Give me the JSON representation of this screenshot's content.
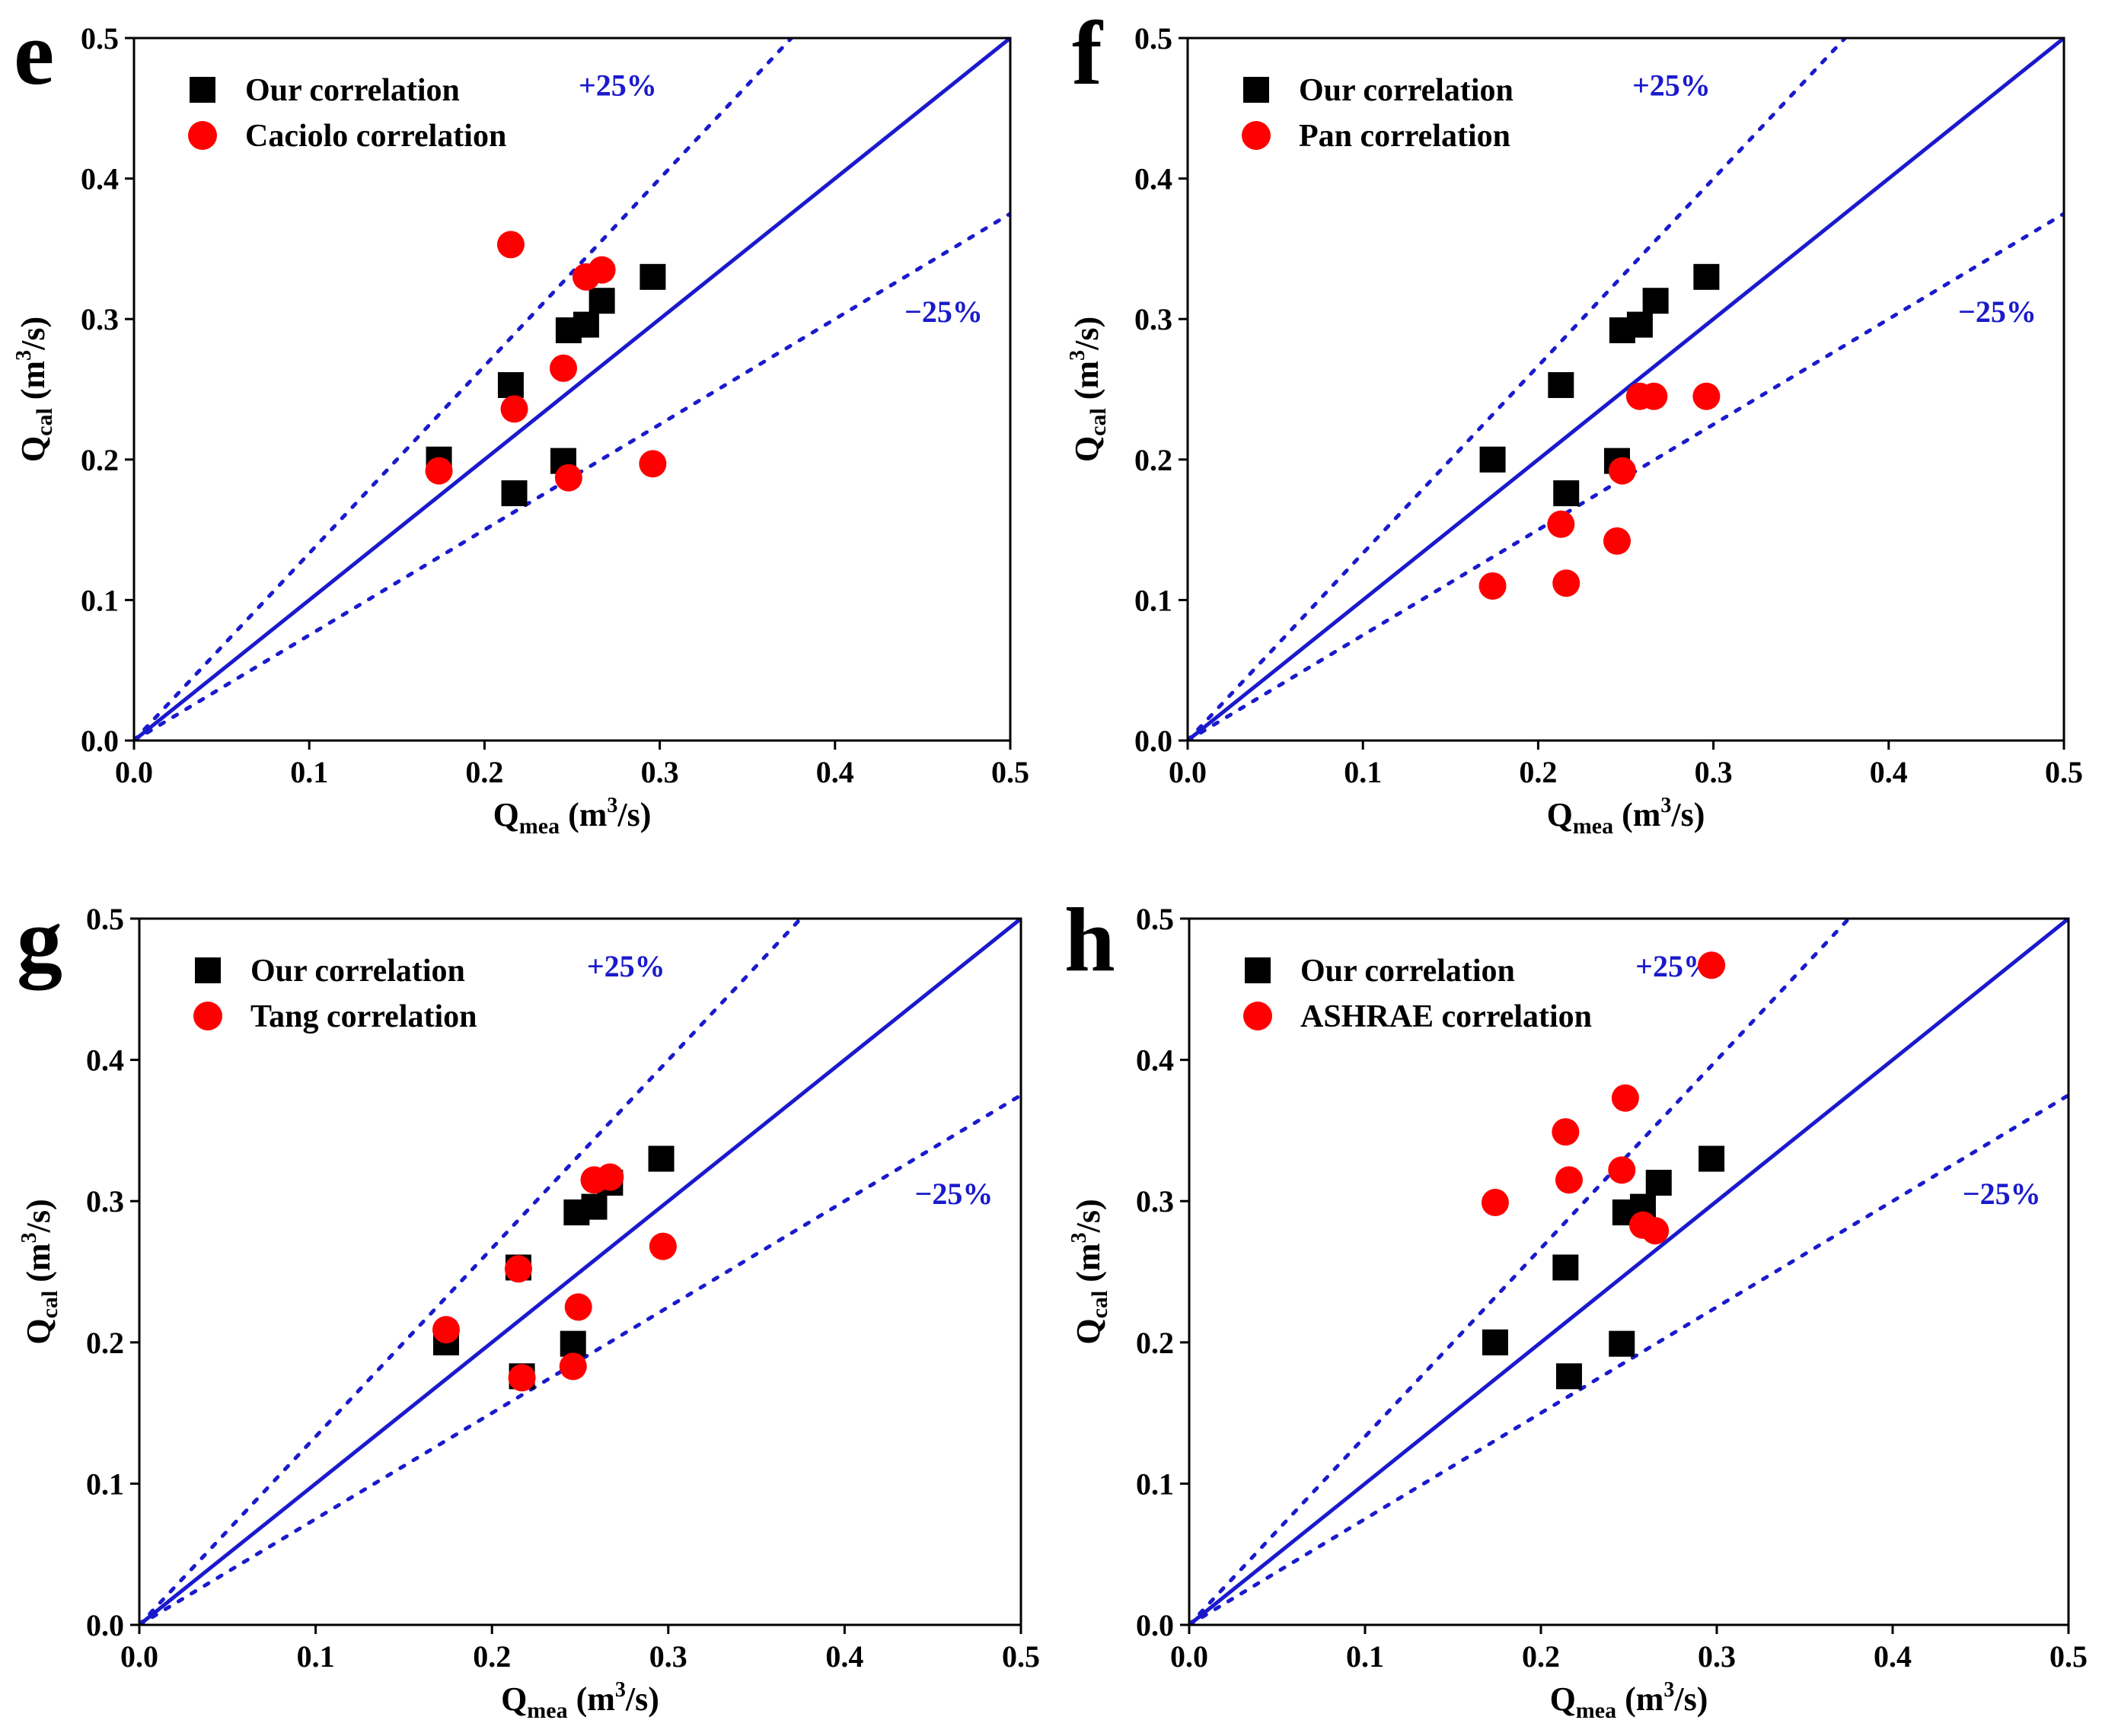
{
  "colors": {
    "ours": "#000000",
    "other": "#ff0000",
    "line": "#1a1acc",
    "axis": "#000000"
  },
  "chart_data": [
    {
      "type": "scatter",
      "panel_label": "e",
      "xlabel_main": "Q",
      "xlabel_sub": "mea",
      "xlabel_unit_pre": " (m",
      "xlabel_unit_sup": "3",
      "xlabel_unit_post": "/s)",
      "ylabel_main": "Q",
      "ylabel_sub": "cal",
      "ylabel_unit_pre": " (m",
      "ylabel_unit_sup": "3",
      "ylabel_unit_post": "/s)",
      "xlim": [
        0,
        0.5
      ],
      "ylim": [
        0,
        0.5
      ],
      "xticks": [
        "0.0",
        "0.1",
        "0.2",
        "0.3",
        "0.4",
        "0.5"
      ],
      "yticks": [
        "0.0",
        "0.1",
        "0.2",
        "0.3",
        "0.4",
        "0.5"
      ],
      "tick_values": [
        0,
        0.1,
        0.2,
        0.3,
        0.4,
        0.5
      ],
      "annotations": {
        "plus": "+25%",
        "minus": "−25%"
      },
      "reference_lines": {
        "identity_slope": 1.0,
        "upper_slope": 1.333,
        "lower_slope": 0.75
      },
      "series": [
        {
          "name": "Our correlation",
          "marker": "square",
          "x": [
            0.174,
            0.215,
            0.217,
            0.245,
            0.248,
            0.258,
            0.267,
            0.296
          ],
          "y": [
            0.2,
            0.253,
            0.176,
            0.199,
            0.292,
            0.296,
            0.313,
            0.33
          ]
        },
        {
          "name": "Caciolo correlation",
          "marker": "circle",
          "x": [
            0.174,
            0.215,
            0.217,
            0.245,
            0.248,
            0.258,
            0.267,
            0.296
          ],
          "y": [
            0.192,
            0.353,
            0.236,
            0.265,
            0.187,
            0.33,
            0.335,
            0.197
          ]
        }
      ]
    },
    {
      "type": "scatter",
      "panel_label": "f",
      "xlabel_main": "Q",
      "xlabel_sub": "mea",
      "xlabel_unit_pre": " (m",
      "xlabel_unit_sup": "3",
      "xlabel_unit_post": "/s)",
      "ylabel_main": "Q",
      "ylabel_sub": "cal",
      "ylabel_unit_pre": " (m",
      "ylabel_unit_sup": "3",
      "ylabel_unit_post": "/s)",
      "xlim": [
        0,
        0.5
      ],
      "ylim": [
        0,
        0.5
      ],
      "xticks": [
        "0.0",
        "0.1",
        "0.2",
        "0.3",
        "0.4",
        "0.5"
      ],
      "yticks": [
        "0.0",
        "0.1",
        "0.2",
        "0.3",
        "0.4",
        "0.5"
      ],
      "tick_values": [
        0,
        0.1,
        0.2,
        0.3,
        0.4,
        0.5
      ],
      "annotations": {
        "plus": "+25%",
        "minus": "−25%"
      },
      "reference_lines": {
        "identity_slope": 1.0,
        "upper_slope": 1.333,
        "lower_slope": 0.75
      },
      "series": [
        {
          "name": "Our correlation",
          "marker": "square",
          "x": [
            0.174,
            0.213,
            0.216,
            0.245,
            0.248,
            0.258,
            0.267,
            0.296
          ],
          "y": [
            0.2,
            0.253,
            0.176,
            0.199,
            0.292,
            0.296,
            0.313,
            0.33
          ]
        },
        {
          "name": "Pan correlation",
          "marker": "circle",
          "x": [
            0.174,
            0.213,
            0.216,
            0.245,
            0.248,
            0.258,
            0.266,
            0.296
          ],
          "y": [
            0.11,
            0.154,
            0.112,
            0.142,
            0.192,
            0.245,
            0.245,
            0.245
          ]
        }
      ]
    },
    {
      "type": "scatter",
      "panel_label": "g",
      "xlabel_main": "Q",
      "xlabel_sub": "mea",
      "xlabel_unit_pre": " (m",
      "xlabel_unit_sup": "3",
      "xlabel_unit_post": "/s)",
      "ylabel_main": "Q",
      "ylabel_sub": "cal",
      "ylabel_unit_pre": " (m",
      "ylabel_unit_sup": "3",
      "ylabel_unit_post": "/s)",
      "xlim": [
        0,
        0.5
      ],
      "ylim": [
        0,
        0.5
      ],
      "xticks": [
        "0.0",
        "0.1",
        "0.2",
        "0.3",
        "0.4",
        "0.5"
      ],
      "yticks": [
        "0.0",
        "0.1",
        "0.2",
        "0.3",
        "0.4",
        "0.5"
      ],
      "tick_values": [
        0,
        0.1,
        0.2,
        0.3,
        0.4,
        0.5
      ],
      "annotations": {
        "plus": "+25%",
        "minus": "−25%"
      },
      "reference_lines": {
        "identity_slope": 1.0,
        "upper_slope": 1.333,
        "lower_slope": 0.75
      },
      "series": [
        {
          "name": "Our correlation",
          "marker": "square",
          "x": [
            0.174,
            0.215,
            0.217,
            0.246,
            0.248,
            0.258,
            0.267,
            0.296
          ],
          "y": [
            0.2,
            0.253,
            0.176,
            0.199,
            0.292,
            0.296,
            0.313,
            0.33
          ]
        },
        {
          "name": "Tang correlation",
          "marker": "circle",
          "x": [
            0.174,
            0.215,
            0.217,
            0.246,
            0.249,
            0.258,
            0.267,
            0.297
          ],
          "y": [
            0.209,
            0.252,
            0.175,
            0.183,
            0.225,
            0.315,
            0.317,
            0.268
          ]
        }
      ]
    },
    {
      "type": "scatter",
      "panel_label": "h",
      "xlabel_main": "Q",
      "xlabel_sub": "mea",
      "xlabel_unit_pre": " (m",
      "xlabel_unit_sup": "3",
      "xlabel_unit_post": "/s)",
      "ylabel_main": "Q",
      "ylabel_sub": "cal",
      "ylabel_unit_pre": " (m",
      "ylabel_unit_sup": "3",
      "ylabel_unit_post": "/s)",
      "xlim": [
        0,
        0.5
      ],
      "ylim": [
        0,
        0.5
      ],
      "xticks": [
        "0.0",
        "0.1",
        "0.2",
        "0.3",
        "0.4",
        "0.5"
      ],
      "yticks": [
        "0.0",
        "0.1",
        "0.2",
        "0.3",
        "0.4",
        "0.5"
      ],
      "tick_values": [
        0,
        0.1,
        0.2,
        0.3,
        0.4,
        0.5
      ],
      "annotations": {
        "plus": "+25%",
        "minus": "−25%"
      },
      "reference_lines": {
        "identity_slope": 1.0,
        "upper_slope": 1.333,
        "lower_slope": 0.75
      },
      "series": [
        {
          "name": "Our correlation",
          "marker": "square",
          "x": [
            0.174,
            0.214,
            0.216,
            0.246,
            0.248,
            0.258,
            0.267,
            0.297
          ],
          "y": [
            0.2,
            0.253,
            0.176,
            0.199,
            0.292,
            0.296,
            0.313,
            0.33
          ]
        },
        {
          "name": "ASHRAE correlation",
          "marker": "circle",
          "x": [
            0.174,
            0.214,
            0.216,
            0.246,
            0.248,
            0.258,
            0.265,
            0.297
          ],
          "y": [
            0.299,
            0.349,
            0.315,
            0.322,
            0.373,
            0.283,
            0.279,
            0.467
          ]
        }
      ]
    }
  ]
}
